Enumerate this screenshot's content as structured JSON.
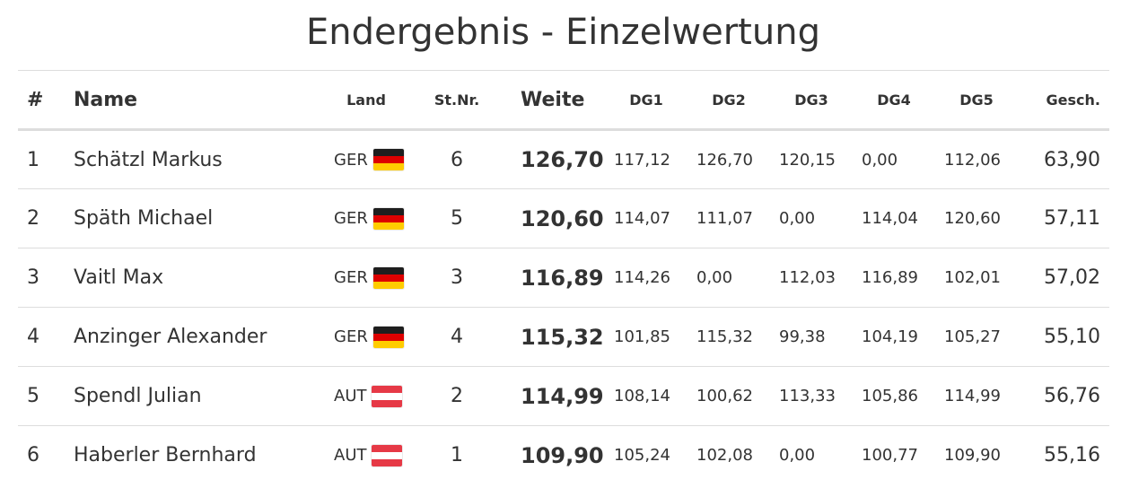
{
  "title": "Endergebnis - Einzelwertung",
  "columns": {
    "rank": "#",
    "name": "Name",
    "land": "Land",
    "stnr": "St.Nr.",
    "weite": "Weite",
    "dg1": "DG1",
    "dg2": "DG2",
    "dg3": "DG3",
    "dg4": "DG4",
    "dg5": "DG5",
    "gesch": "Gesch."
  },
  "flag_colors": {
    "GER": [
      "#1e1e1e",
      "#dd0000",
      "#ffcc00"
    ],
    "AUT": [
      "#e63946",
      "#ffffff",
      "#e63946"
    ]
  },
  "rows": [
    {
      "rank": "1",
      "name": "Schätzl Markus",
      "land": "GER",
      "flag_icon": "germany-flag-icon",
      "stnr": "6",
      "weite": "126,70",
      "dg1": "117,12",
      "dg2": "126,70",
      "dg3": "120,15",
      "dg4": "0,00",
      "dg5": "112,06",
      "gesch": "63,90"
    },
    {
      "rank": "2",
      "name": "Späth Michael",
      "land": "GER",
      "flag_icon": "germany-flag-icon",
      "stnr": "5",
      "weite": "120,60",
      "dg1": "114,07",
      "dg2": "111,07",
      "dg3": "0,00",
      "dg4": "114,04",
      "dg5": "120,60",
      "gesch": "57,11"
    },
    {
      "rank": "3",
      "name": "Vaitl Max",
      "land": "GER",
      "flag_icon": "germany-flag-icon",
      "stnr": "3",
      "weite": "116,89",
      "dg1": "114,26",
      "dg2": "0,00",
      "dg3": "112,03",
      "dg4": "116,89",
      "dg5": "102,01",
      "gesch": "57,02"
    },
    {
      "rank": "4",
      "name": "Anzinger Alexander",
      "land": "GER",
      "flag_icon": "germany-flag-icon",
      "stnr": "4",
      "weite": "115,32",
      "dg1": "101,85",
      "dg2": "115,32",
      "dg3": "99,38",
      "dg4": "104,19",
      "dg5": "105,27",
      "gesch": "55,10"
    },
    {
      "rank": "5",
      "name": "Spendl Julian",
      "land": "AUT",
      "flag_icon": "austria-flag-icon",
      "stnr": "2",
      "weite": "114,99",
      "dg1": "108,14",
      "dg2": "100,62",
      "dg3": "113,33",
      "dg4": "105,86",
      "dg5": "114,99",
      "gesch": "56,76"
    },
    {
      "rank": "6",
      "name": "Haberler Bernhard",
      "land": "AUT",
      "flag_icon": "austria-flag-icon",
      "stnr": "1",
      "weite": "109,90",
      "dg1": "105,24",
      "dg2": "102,08",
      "dg3": "0,00",
      "dg4": "100,77",
      "dg5": "109,90",
      "gesch": "55,16"
    }
  ]
}
